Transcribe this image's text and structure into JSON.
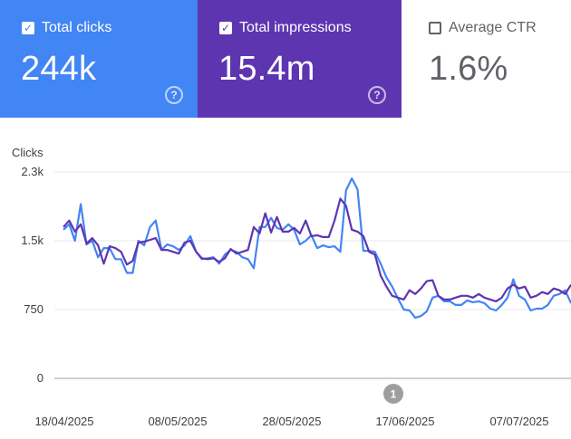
{
  "cards": {
    "clicks": {
      "label": "Total clicks",
      "value": "244k",
      "checked": true,
      "color": "#4285f4",
      "help_icon": "help-icon"
    },
    "impressions": {
      "label": "Total impressions",
      "value": "15.4m",
      "checked": true,
      "color": "#5e35b1",
      "help_icon": "help-icon"
    },
    "ctr": {
      "label": "Average CTR",
      "value": "1.6%",
      "checked": false
    }
  },
  "chart_data": {
    "type": "line",
    "ylabel": "Clicks",
    "yticks": [
      "2.3k",
      "1.5k",
      "750",
      "0"
    ],
    "ytick_values": [
      2250,
      1500,
      750,
      0
    ],
    "ylim": [
      0,
      2250
    ],
    "xticks": [
      "18/04/2025",
      "08/05/2025",
      "28/05/2025",
      "17/06/2025",
      "07/07/2025"
    ],
    "annotation": "1",
    "grid": true,
    "series": [
      {
        "color": "#4285f4",
        "values": [
          1620,
          1680,
          1500,
          1900,
          1460,
          1500,
          1320,
          1420,
          1420,
          1300,
          1300,
          1150,
          1150,
          1500,
          1450,
          1650,
          1720,
          1400,
          1460,
          1440,
          1400,
          1450,
          1550,
          1380,
          1300,
          1310,
          1320,
          1250,
          1350,
          1400,
          1380,
          1320,
          1300,
          1200,
          1650,
          1650,
          1750,
          1640,
          1620,
          1680,
          1620,
          1460,
          1500,
          1560,
          1420,
          1450,
          1430,
          1440,
          1380,
          2050,
          2180,
          2060,
          1390,
          1390,
          1380,
          1250,
          1100,
          1000,
          870,
          750,
          740,
          660,
          680,
          730,
          880,
          900,
          840,
          840,
          800,
          800,
          850,
          830,
          840,
          820,
          760,
          740,
          800,
          880,
          1080,
          900,
          860,
          740,
          760,
          760,
          800,
          900,
          920,
          960,
          820
        ],
        "impressions": false
      },
      {
        "color": "#5e35b1",
        "values": [
          1650,
          1720,
          1600,
          1680,
          1470,
          1530,
          1450,
          1250,
          1440,
          1420,
          1380,
          1240,
          1280,
          1480,
          1490,
          1510,
          1530,
          1400,
          1400,
          1380,
          1360,
          1480,
          1500,
          1380,
          1310,
          1300,
          1310,
          1270,
          1310,
          1410,
          1360,
          1380,
          1400,
          1650,
          1580,
          1800,
          1590,
          1760,
          1600,
          1600,
          1640,
          1580,
          1720,
          1550,
          1560,
          1540,
          1540,
          1720,
          1960,
          1880,
          1620,
          1600,
          1550,
          1380,
          1350,
          1120,
          1000,
          900,
          880,
          860,
          960,
          920,
          980,
          1060,
          1070,
          900,
          860,
          860,
          880,
          900,
          900,
          880,
          920,
          880,
          860,
          840,
          880,
          980,
          1020,
          980,
          1000,
          880,
          900,
          940,
          920,
          980,
          960,
          920,
          1020
        ],
        "impressions": true
      }
    ]
  }
}
